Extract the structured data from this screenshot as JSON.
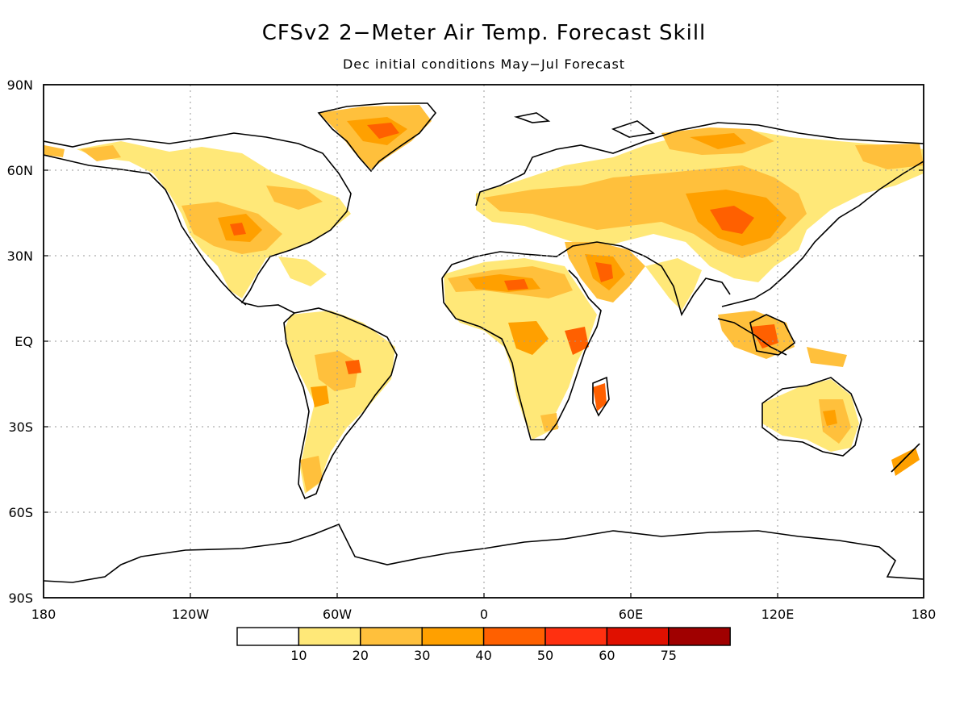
{
  "title": "CFSv2 2−Meter Air Temp. Forecast Skill",
  "subtitle": "Dec initial conditions   May−Jul Forecast",
  "lat_labels": [
    "90N",
    "60N",
    "30N",
    "EQ",
    "30S",
    "60S",
    "90S"
  ],
  "lon_labels": [
    "180",
    "120W",
    "60W",
    "0",
    "60E",
    "120E",
    "180"
  ],
  "colorbar": {
    "labels": [
      "10",
      "20",
      "30",
      "40",
      "50",
      "60",
      "75"
    ],
    "colors": [
      "#ffffff",
      "#ffe878",
      "#ffc03c",
      "#ffa000",
      "#ff6000",
      "#ff3010",
      "#e01000",
      "#a00000"
    ]
  }
}
